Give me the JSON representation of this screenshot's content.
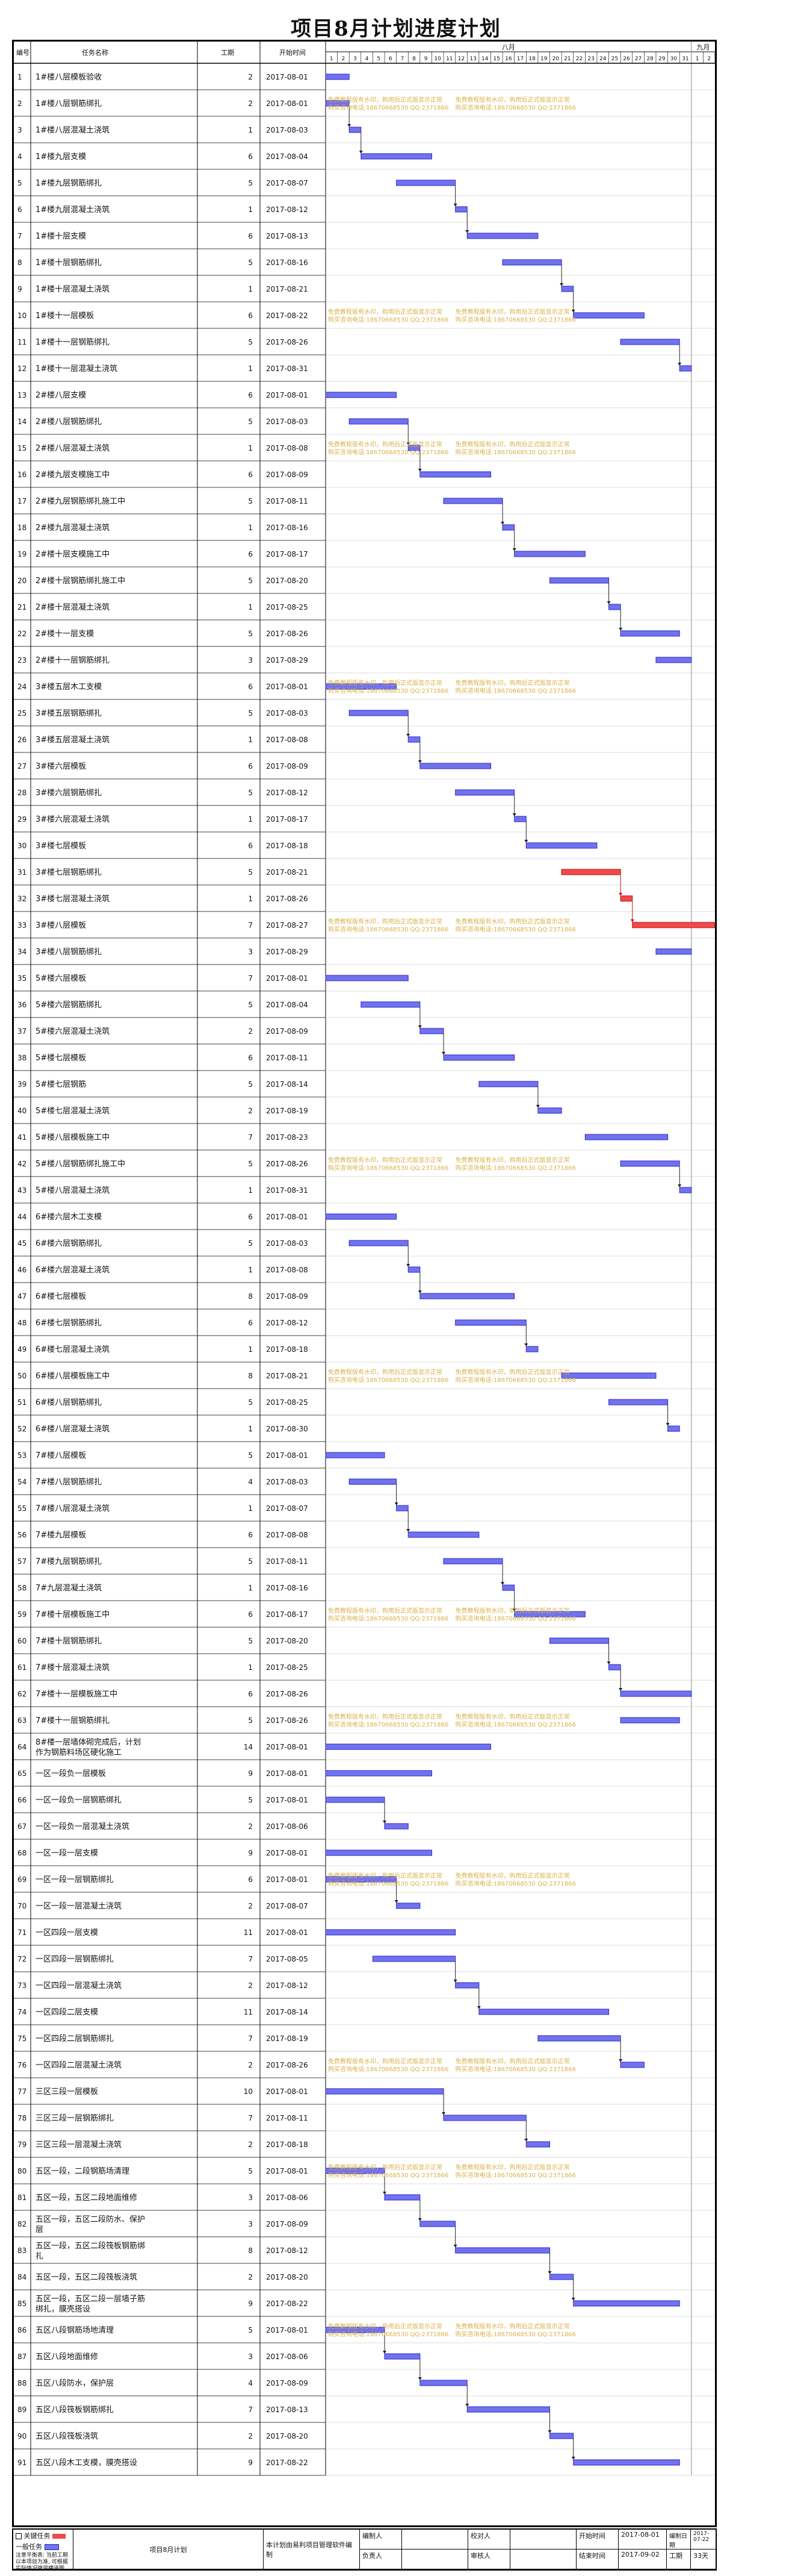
{
  "title": "项目8月计划进度计划",
  "headers": {
    "id": "编号",
    "name": "任务名称",
    "duration": "工期",
    "start": "开始时间",
    "month1": "八月",
    "month2": "九月"
  },
  "day_labels": [
    "1",
    "2",
    "3",
    "4",
    "5",
    "6",
    "7",
    "8",
    "9",
    "10",
    "11",
    "12",
    "13",
    "14",
    "15",
    "16",
    "17",
    "18",
    "19",
    "20",
    "21",
    "22",
    "23",
    "24",
    "25",
    "26",
    "27",
    "28",
    "29",
    "30",
    "31",
    "1",
    "2"
  ],
  "watermark": {
    "line1": "免费教程版有水印，购用后正式版显示正常",
    "line2": "购买咨询电话:18670668530 QQ:2371866"
  },
  "legend": {
    "critical": "关键任务",
    "normal": "一般任务",
    "note": "注意平衡表: 当前工期以本项目为准, 可根据实际情况微调横道图"
  },
  "footer": {
    "plan": "项目8月计划",
    "software": "本计划由易利项目管理软件编制",
    "compiler_label": "编制人",
    "compiler": "",
    "approver_label": "负责人",
    "approver": "",
    "reviewer_label": "校对人",
    "reviewer": "",
    "auditor_label": "审核人",
    "auditor": "",
    "plan_start_label": "开始时间",
    "plan_start": "2017-08-01",
    "plan_end_label": "结束时间",
    "plan_end": "2017-09-02",
    "made_date_label": "编制日期",
    "made_date": "2017-07-22",
    "total_label": "工期",
    "total": "33天"
  },
  "tasks": [
    {
      "id": 1,
      "name": "1#楼八层模板验收",
      "dur": 2,
      "start": "2017-08-01",
      "d": 1,
      "pred": null,
      "crit": false
    },
    {
      "id": 2,
      "name": "1#楼八层钢筋绑扎",
      "dur": 2,
      "start": "2017-08-01",
      "d": 1,
      "pred": null,
      "crit": false
    },
    {
      "id": 3,
      "name": "1#楼八层混凝土浇筑",
      "dur": 1,
      "start": "2017-08-03",
      "d": 3,
      "pred": 2,
      "crit": false
    },
    {
      "id": 4,
      "name": "1#楼九层支模",
      "dur": 6,
      "start": "2017-08-04",
      "d": 4,
      "pred": 3,
      "crit": false
    },
    {
      "id": 5,
      "name": "1#楼九层钢筋绑扎",
      "dur": 5,
      "start": "2017-08-07",
      "d": 7,
      "pred": null,
      "crit": false
    },
    {
      "id": 6,
      "name": "1#楼九层混凝土浇筑",
      "dur": 1,
      "start": "2017-08-12",
      "d": 12,
      "pred": 5,
      "crit": false
    },
    {
      "id": 7,
      "name": "1#楼十层支模",
      "dur": 6,
      "start": "2017-08-13",
      "d": 13,
      "pred": 6,
      "crit": false
    },
    {
      "id": 8,
      "name": "1#楼十层钢筋绑扎",
      "dur": 5,
      "start": "2017-08-16",
      "d": 16,
      "pred": null,
      "crit": false
    },
    {
      "id": 9,
      "name": "1#楼十层混凝土浇筑",
      "dur": 1,
      "start": "2017-08-21",
      "d": 21,
      "pred": 8,
      "crit": false
    },
    {
      "id": 10,
      "name": "1#楼十一层模板",
      "dur": 6,
      "start": "2017-08-22",
      "d": 22,
      "pred": 9,
      "crit": false
    },
    {
      "id": 11,
      "name": "1#楼十一层钢筋绑扎",
      "dur": 5,
      "start": "2017-08-26",
      "d": 26,
      "pred": null,
      "crit": false
    },
    {
      "id": 12,
      "name": "1#楼十一层混凝土浇筑",
      "dur": 1,
      "start": "2017-08-31",
      "d": 31,
      "pred": 11,
      "crit": false
    },
    {
      "id": 13,
      "name": "2#楼八层支模",
      "dur": 6,
      "start": "2017-08-01",
      "d": 1,
      "pred": null,
      "crit": false
    },
    {
      "id": 14,
      "name": "2#楼八层钢筋绑扎",
      "dur": 5,
      "start": "2017-08-03",
      "d": 3,
      "pred": null,
      "crit": false
    },
    {
      "id": 15,
      "name": "2#楼八层混凝土浇筑",
      "dur": 1,
      "start": "2017-08-08",
      "d": 8,
      "pred": 14,
      "crit": false
    },
    {
      "id": 16,
      "name": "2#楼九层支模施工中",
      "dur": 6,
      "start": "2017-08-09",
      "d": 9,
      "pred": 15,
      "crit": false
    },
    {
      "id": 17,
      "name": "2#楼九层钢筋绑扎施工中",
      "dur": 5,
      "start": "2017-08-11",
      "d": 11,
      "pred": null,
      "crit": false
    },
    {
      "id": 18,
      "name": "2#楼九层混凝土浇筑",
      "dur": 1,
      "start": "2017-08-16",
      "d": 16,
      "pred": 17,
      "crit": false
    },
    {
      "id": 19,
      "name": "2#楼十层支模施工中",
      "dur": 6,
      "start": "2017-08-17",
      "d": 17,
      "pred": 18,
      "crit": false
    },
    {
      "id": 20,
      "name": "2#楼十层钢筋绑扎施工中",
      "dur": 5,
      "start": "2017-08-20",
      "d": 20,
      "pred": null,
      "crit": false
    },
    {
      "id": 21,
      "name": "2#楼十层混凝土浇筑",
      "dur": 1,
      "start": "2017-08-25",
      "d": 25,
      "pred": 20,
      "crit": false
    },
    {
      "id": 22,
      "name": "2#楼十一层支模",
      "dur": 5,
      "start": "2017-08-26",
      "d": 26,
      "pred": 21,
      "crit": false
    },
    {
      "id": 23,
      "name": "2#楼十一层钢筋绑扎",
      "dur": 3,
      "start": "2017-08-29",
      "d": 29,
      "pred": null,
      "crit": false
    },
    {
      "id": 24,
      "name": "3#楼五层木工支模",
      "dur": 6,
      "start": "2017-08-01",
      "d": 1,
      "pred": null,
      "crit": false
    },
    {
      "id": 25,
      "name": "3#楼五层钢筋绑扎",
      "dur": 5,
      "start": "2017-08-03",
      "d": 3,
      "pred": null,
      "crit": false
    },
    {
      "id": 26,
      "name": "3#楼五层混凝土浇筑",
      "dur": 1,
      "start": "2017-08-08",
      "d": 8,
      "pred": 25,
      "crit": false
    },
    {
      "id": 27,
      "name": "3#楼六层模板",
      "dur": 6,
      "start": "2017-08-09",
      "d": 9,
      "pred": 26,
      "crit": false
    },
    {
      "id": 28,
      "name": "3#楼六层钢筋绑扎",
      "dur": 5,
      "start": "2017-08-12",
      "d": 12,
      "pred": null,
      "crit": false
    },
    {
      "id": 29,
      "name": "3#楼六层混凝土浇筑",
      "dur": 1,
      "start": "2017-08-17",
      "d": 17,
      "pred": 28,
      "crit": false
    },
    {
      "id": 30,
      "name": "3#楼七层模板",
      "dur": 6,
      "start": "2017-08-18",
      "d": 18,
      "pred": 29,
      "crit": false
    },
    {
      "id": 31,
      "name": "3#楼七层钢筋绑扎",
      "dur": 5,
      "start": "2017-08-21",
      "d": 21,
      "pred": null,
      "crit": true
    },
    {
      "id": 32,
      "name": "3#楼七层混凝土浇筑",
      "dur": 1,
      "start": "2017-08-26",
      "d": 26,
      "pred": 31,
      "crit": true
    },
    {
      "id": 33,
      "name": "3#楼八层模板",
      "dur": 7,
      "start": "2017-08-27",
      "d": 27,
      "pred": 32,
      "crit": true
    },
    {
      "id": 34,
      "name": "3#楼八层钢筋绑扎",
      "dur": 3,
      "start": "2017-08-29",
      "d": 29,
      "pred": null,
      "crit": false
    },
    {
      "id": 35,
      "name": "5#楼六层模板",
      "dur": 7,
      "start": "2017-08-01",
      "d": 1,
      "pred": null,
      "crit": false
    },
    {
      "id": 36,
      "name": "5#楼六层钢筋绑扎",
      "dur": 5,
      "start": "2017-08-04",
      "d": 4,
      "pred": null,
      "crit": false
    },
    {
      "id": 37,
      "name": "5#楼六层混凝土浇筑",
      "dur": 2,
      "start": "2017-08-09",
      "d": 9,
      "pred": 36,
      "crit": false
    },
    {
      "id": 38,
      "name": "5#楼七层模板",
      "dur": 6,
      "start": "2017-08-11",
      "d": 11,
      "pred": 37,
      "crit": false
    },
    {
      "id": 39,
      "name": "5#楼七层钢筋",
      "dur": 5,
      "start": "2017-08-14",
      "d": 14,
      "pred": null,
      "crit": false
    },
    {
      "id": 40,
      "name": "5#楼七层混凝土浇筑",
      "dur": 2,
      "start": "2017-08-19",
      "d": 19,
      "pred": 39,
      "crit": false
    },
    {
      "id": 41,
      "name": "5#楼八层模板施工中",
      "dur": 7,
      "start": "2017-08-23",
      "d": 23,
      "pred": null,
      "crit": false
    },
    {
      "id": 42,
      "name": "5#楼八层钢筋绑扎施工中",
      "dur": 5,
      "start": "2017-08-26",
      "d": 26,
      "pred": null,
      "crit": false
    },
    {
      "id": 43,
      "name": "5#楼八层混凝土浇筑",
      "dur": 1,
      "start": "2017-08-31",
      "d": 31,
      "pred": 42,
      "crit": false
    },
    {
      "id": 44,
      "name": "6#楼六层木工支模",
      "dur": 6,
      "start": "2017-08-01",
      "d": 1,
      "pred": null,
      "crit": false
    },
    {
      "id": 45,
      "name": "6#楼六层钢筋绑扎",
      "dur": 5,
      "start": "2017-08-03",
      "d": 3,
      "pred": null,
      "crit": false
    },
    {
      "id": 46,
      "name": "6#楼六层混凝土浇筑",
      "dur": 1,
      "start": "2017-08-08",
      "d": 8,
      "pred": 45,
      "crit": false
    },
    {
      "id": 47,
      "name": "6#楼七层模板",
      "dur": 8,
      "start": "2017-08-09",
      "d": 9,
      "pred": 46,
      "crit": false
    },
    {
      "id": 48,
      "name": "6#楼七层钢筋绑扎",
      "dur": 6,
      "start": "2017-08-12",
      "d": 12,
      "pred": null,
      "crit": false
    },
    {
      "id": 49,
      "name": "6#楼七层混凝土浇筑",
      "dur": 1,
      "start": "2017-08-18",
      "d": 18,
      "pred": 48,
      "crit": false
    },
    {
      "id": 50,
      "name": "6#楼八层模板施工中",
      "dur": 8,
      "start": "2017-08-21",
      "d": 21,
      "pred": null,
      "crit": false
    },
    {
      "id": 51,
      "name": "6#楼八层钢筋绑扎",
      "dur": 5,
      "start": "2017-08-25",
      "d": 25,
      "pred": null,
      "crit": false
    },
    {
      "id": 52,
      "name": "6#楼八层混凝土浇筑",
      "dur": 1,
      "start": "2017-08-30",
      "d": 30,
      "pred": 51,
      "crit": false
    },
    {
      "id": 53,
      "name": "7#楼八层模板",
      "dur": 5,
      "start": "2017-08-01",
      "d": 1,
      "pred": null,
      "crit": false
    },
    {
      "id": 54,
      "name": "7#楼八层钢筋绑扎",
      "dur": 4,
      "start": "2017-08-03",
      "d": 3,
      "pred": null,
      "crit": false
    },
    {
      "id": 55,
      "name": "7#楼八层混凝土浇筑",
      "dur": 1,
      "start": "2017-08-07",
      "d": 7,
      "pred": 54,
      "crit": false
    },
    {
      "id": 56,
      "name": "7#楼九层模板",
      "dur": 6,
      "start": "2017-08-08",
      "d": 8,
      "pred": 55,
      "crit": false
    },
    {
      "id": 57,
      "name": "7#楼九层钢筋绑扎",
      "dur": 5,
      "start": "2017-08-11",
      "d": 11,
      "pred": null,
      "crit": false
    },
    {
      "id": 58,
      "name": "7#九层混凝土浇筑",
      "dur": 1,
      "start": "2017-08-16",
      "d": 16,
      "pred": 57,
      "crit": false
    },
    {
      "id": 59,
      "name": "7#楼十层模板施工中",
      "dur": 6,
      "start": "2017-08-17",
      "d": 17,
      "pred": 58,
      "crit": false
    },
    {
      "id": 60,
      "name": "7#楼十层钢筋绑扎",
      "dur": 5,
      "start": "2017-08-20",
      "d": 20,
      "pred": null,
      "crit": false
    },
    {
      "id": 61,
      "name": "7#楼十层混凝土浇筑",
      "dur": 1,
      "start": "2017-08-25",
      "d": 25,
      "pred": 60,
      "crit": false
    },
    {
      "id": 62,
      "name": "7#楼十一层模板施工中",
      "dur": 6,
      "start": "2017-08-26",
      "d": 26,
      "pred": 61,
      "crit": false
    },
    {
      "id": 63,
      "name": "7#楼十一层钢筋绑扎",
      "dur": 5,
      "start": "2017-08-26",
      "d": 26,
      "pred": null,
      "crit": false
    },
    {
      "id": 64,
      "name": "8#楼一层墙体砌完成后，计划作为钢筋料场区硬化施工",
      "dur": 14,
      "start": "2017-08-01",
      "d": 1,
      "pred": null,
      "crit": false
    },
    {
      "id": 65,
      "name": "一区一段负一层模板",
      "dur": 9,
      "start": "2017-08-01",
      "d": 1,
      "pred": null,
      "crit": false
    },
    {
      "id": 66,
      "name": "一区一段负一层钢筋绑扎",
      "dur": 5,
      "start": "2017-08-01",
      "d": 1,
      "pred": null,
      "crit": false
    },
    {
      "id": 67,
      "name": "一区一段负一层混凝土浇筑",
      "dur": 2,
      "start": "2017-08-06",
      "d": 6,
      "pred": 66,
      "crit": false
    },
    {
      "id": 68,
      "name": "一区一段一层支模",
      "dur": 9,
      "start": "2017-08-01",
      "d": 1,
      "pred": null,
      "crit": false
    },
    {
      "id": 69,
      "name": "一区一段一层钢筋绑扎",
      "dur": 6,
      "start": "2017-08-01",
      "d": 1,
      "pred": null,
      "crit": false
    },
    {
      "id": 70,
      "name": "一区一段一层混凝土浇筑",
      "dur": 2,
      "start": "2017-08-07",
      "d": 7,
      "pred": 69,
      "crit": false
    },
    {
      "id": 71,
      "name": "一区四段一层支模",
      "dur": 11,
      "start": "2017-08-01",
      "d": 1,
      "pred": null,
      "crit": false
    },
    {
      "id": 72,
      "name": "一区四段一层钢筋绑扎",
      "dur": 7,
      "start": "2017-08-05",
      "d": 5,
      "pred": null,
      "crit": false
    },
    {
      "id": 73,
      "name": "一区四段一层混凝土浇筑",
      "dur": 2,
      "start": "2017-08-12",
      "d": 12,
      "pred": 72,
      "crit": false
    },
    {
      "id": 74,
      "name": "一区四段二层支模",
      "dur": 11,
      "start": "2017-08-14",
      "d": 14,
      "pred": 73,
      "crit": false
    },
    {
      "id": 75,
      "name": "一区四段二层钢筋绑扎",
      "dur": 7,
      "start": "2017-08-19",
      "d": 19,
      "pred": null,
      "crit": false
    },
    {
      "id": 76,
      "name": "一区四段二层混凝土浇筑",
      "dur": 2,
      "start": "2017-08-26",
      "d": 26,
      "pred": 75,
      "crit": false
    },
    {
      "id": 77,
      "name": "三区三段一层模板",
      "dur": 10,
      "start": "2017-08-01",
      "d": 1,
      "pred": null,
      "crit": false
    },
    {
      "id": 78,
      "name": "三区三段一层钢筋绑扎",
      "dur": 7,
      "start": "2017-08-11",
      "d": 11,
      "pred": 77,
      "crit": false
    },
    {
      "id": 79,
      "name": "三区三段一层混凝土浇筑",
      "dur": 2,
      "start": "2017-08-18",
      "d": 18,
      "pred": 78,
      "crit": false
    },
    {
      "id": 80,
      "name": "五区一段，二段钢筋场清理",
      "dur": 5,
      "start": "2017-08-01",
      "d": 1,
      "pred": null,
      "crit": false
    },
    {
      "id": 81,
      "name": "五区一段，五区二段地面维修",
      "dur": 3,
      "start": "2017-08-06",
      "d": 6,
      "pred": 80,
      "crit": false
    },
    {
      "id": 82,
      "name": "五区一段，五区二段防水、保护层",
      "dur": 3,
      "start": "2017-08-09",
      "d": 9,
      "pred": 81,
      "crit": false
    },
    {
      "id": 83,
      "name": "五区一段，五区二段筏板钢筋绑扎",
      "dur": 8,
      "start": "2017-08-12",
      "d": 12,
      "pred": 82,
      "crit": false
    },
    {
      "id": 84,
      "name": "五区一段，五区二段筏板浇筑",
      "dur": 2,
      "start": "2017-08-20",
      "d": 20,
      "pred": 83,
      "crit": false
    },
    {
      "id": 85,
      "name": "五区一段，五区二段一层墙子筋绑扎，膜壳搭设",
      "dur": 9,
      "start": "2017-08-22",
      "d": 22,
      "pred": 84,
      "crit": false
    },
    {
      "id": 86,
      "name": "五区八段钢筋场地清理",
      "dur": 5,
      "start": "2017-08-01",
      "d": 1,
      "pred": null,
      "crit": false
    },
    {
      "id": 87,
      "name": "五区八段地面维修",
      "dur": 3,
      "start": "2017-08-06",
      "d": 6,
      "pred": 86,
      "crit": false
    },
    {
      "id": 88,
      "name": "五区八段防水，保护层",
      "dur": 4,
      "start": "2017-08-09",
      "d": 9,
      "pred": 87,
      "crit": false
    },
    {
      "id": 89,
      "name": "五区八段筏板钢筋绑扎",
      "dur": 7,
      "start": "2017-08-13",
      "d": 13,
      "pred": 88,
      "crit": false
    },
    {
      "id": 90,
      "name": "五区八段筏板浇筑",
      "dur": 2,
      "start": "2017-08-20",
      "d": 20,
      "pred": 89,
      "crit": false
    },
    {
      "id": 91,
      "name": "五区八段木工支模，膜壳搭设",
      "dur": 9,
      "start": "2017-08-22",
      "d": 22,
      "pred": 90,
      "crit": false
    }
  ]
}
